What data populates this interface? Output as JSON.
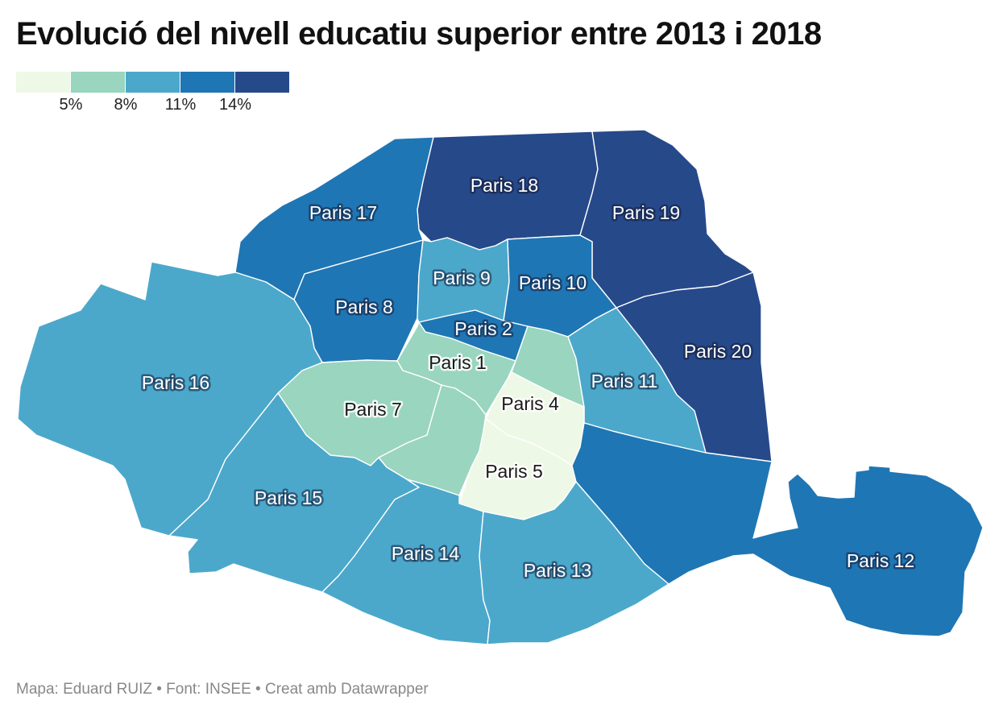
{
  "title": "Evolució del nivell educatiu superior entre 2013 i 2018",
  "legend": {
    "colors": [
      "#eef8e6",
      "#99d5bf",
      "#4ba8cb",
      "#1f76b4",
      "#26498a"
    ],
    "ticks": [
      "5%",
      "8%",
      "11%",
      "14%"
    ]
  },
  "districts": [
    {
      "id": "18",
      "label": "Paris 18",
      "color": "#26498a"
    },
    {
      "id": "19",
      "label": "Paris 19",
      "color": "#26498a"
    },
    {
      "id": "20",
      "label": "Paris 20",
      "color": "#26498a"
    },
    {
      "id": "17",
      "label": "Paris 17",
      "color": "#1f76b4"
    },
    {
      "id": "8",
      "label": "Paris 8",
      "color": "#1f76b4"
    },
    {
      "id": "10",
      "label": "Paris 10",
      "color": "#1f76b4"
    },
    {
      "id": "2",
      "label": "Paris 2",
      "color": "#1f76b4"
    },
    {
      "id": "12",
      "label": "Paris 12",
      "color": "#1f76b4"
    },
    {
      "id": "16",
      "label": "Paris 16",
      "color": "#4ba8cb"
    },
    {
      "id": "9",
      "label": "Paris 9",
      "color": "#4ba8cb"
    },
    {
      "id": "11",
      "label": "Paris 11",
      "color": "#4ba8cb"
    },
    {
      "id": "15",
      "label": "Paris 15",
      "color": "#4ba8cb"
    },
    {
      "id": "14",
      "label": "Paris 14",
      "color": "#4ba8cb"
    },
    {
      "id": "13",
      "label": "Paris 13",
      "color": "#4ba8cb"
    },
    {
      "id": "1",
      "label": "Paris 1",
      "color": "#99d5bf"
    },
    {
      "id": "7",
      "label": "Paris 7",
      "color": "#99d5bf"
    },
    {
      "id": "3",
      "label": "",
      "color": "#99d5bf"
    },
    {
      "id": "6",
      "label": "",
      "color": "#99d5bf"
    },
    {
      "id": "4",
      "label": "Paris 4",
      "color": "#eef8e6"
    },
    {
      "id": "5",
      "label": "Paris 5",
      "color": "#eef8e6"
    }
  ],
  "footer": "Mapa: Eduard RUIZ • Font: INSEE • Creat amb Datawrapper"
}
